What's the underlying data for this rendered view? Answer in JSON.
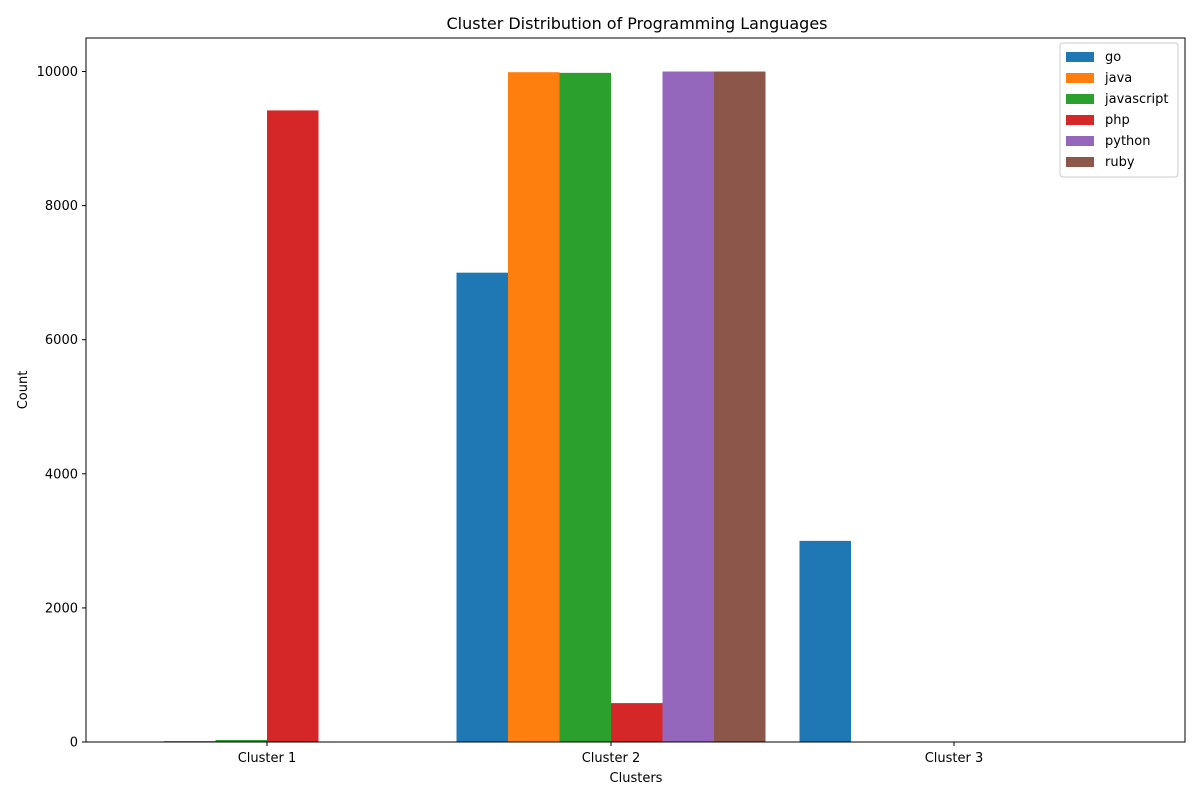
{
  "chart_data": {
    "type": "bar",
    "title": "Cluster Distribution of Programming Languages",
    "xlabel": "Clusters",
    "ylabel": "Count",
    "categories": [
      "Cluster 1",
      "Cluster 2",
      "Cluster 3"
    ],
    "ylim": [
      0,
      10500
    ],
    "yticks": [
      0,
      2000,
      4000,
      6000,
      8000,
      10000
    ],
    "grid": false,
    "legend_position": "top-right",
    "series": [
      {
        "name": "go",
        "color": "#1f77b4",
        "values": [
          0,
          7000,
          3000
        ]
      },
      {
        "name": "java",
        "color": "#ff7f0e",
        "values": [
          15,
          9990,
          0
        ]
      },
      {
        "name": "javascript",
        "color": "#2ca02c",
        "values": [
          30,
          9980,
          0
        ]
      },
      {
        "name": "php",
        "color": "#d62728",
        "values": [
          9420,
          580,
          0
        ]
      },
      {
        "name": "python",
        "color": "#9467bd",
        "values": [
          0,
          10000,
          0
        ]
      },
      {
        "name": "ruby",
        "color": "#8c564b",
        "values": [
          0,
          10000,
          0
        ]
      }
    ]
  }
}
